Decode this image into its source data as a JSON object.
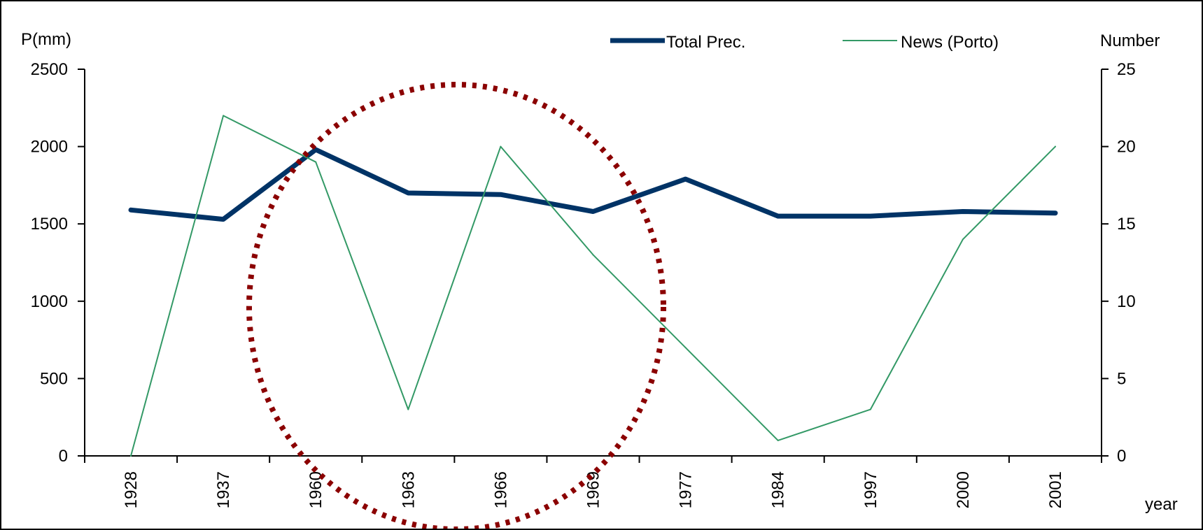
{
  "chart_data": {
    "type": "line",
    "categories": [
      "1928",
      "1937",
      "1960",
      "1963",
      "1966",
      "1969",
      "1977",
      "1984",
      "1997",
      "2000",
      "2001"
    ],
    "series": [
      {
        "name": "Total Prec.",
        "axis": "left",
        "color": "#003366",
        "values": [
          1590,
          1530,
          1980,
          1700,
          1690,
          1580,
          1790,
          1550,
          1550,
          1580,
          1570
        ]
      },
      {
        "name": "News (Porto)",
        "axis": "right",
        "color": "#339966",
        "values": [
          0,
          22,
          19,
          3,
          20,
          13,
          7,
          1,
          3,
          14,
          20
        ]
      }
    ],
    "ylabel_left": "P(mm)",
    "ylabel_right": "Number",
    "xlabel": "year",
    "ylim_left": [
      0,
      2500
    ],
    "ylim_right": [
      0,
      25
    ],
    "yticks_left": [
      "0",
      "500",
      "1000",
      "1500",
      "2000",
      "2500"
    ],
    "yticks_right": [
      "0",
      "5",
      "10",
      "15",
      "20",
      "25"
    ],
    "grid": false,
    "legend_position": "top-right",
    "annotation": {
      "shape": "dotted-ellipse",
      "color": "#8b0000"
    }
  }
}
